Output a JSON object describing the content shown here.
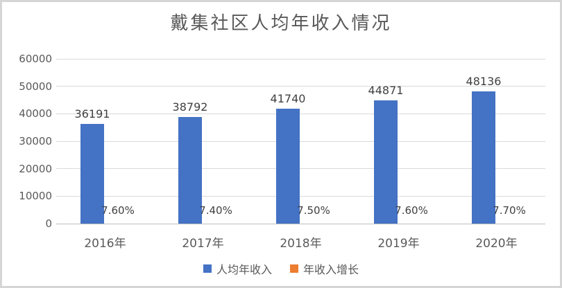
{
  "chart_data": {
    "type": "bar",
    "title": "戴集社区人均年收入情况",
    "categories": [
      "2016年",
      "2017年",
      "2018年",
      "2019年",
      "2020年"
    ],
    "series": [
      {
        "name": "人均年收入",
        "color": "#4472C4",
        "values": [
          36191,
          38792,
          41740,
          44871,
          48136
        ],
        "labels": [
          "36191",
          "38792",
          "41740",
          "44871",
          "48136"
        ]
      },
      {
        "name": "年收入增长",
        "color": "#ED7D31",
        "values": [
          0.076,
          0.074,
          0.075,
          0.076,
          0.077
        ],
        "labels": [
          "7.60%",
          "7.40%",
          "7.50%",
          "7.60%",
          "7.70%"
        ]
      }
    ],
    "ylim": [
      0,
      60000
    ],
    "ytick_step": 10000,
    "yticks": [
      "0",
      "10000",
      "20000",
      "30000",
      "40000",
      "50000",
      "60000"
    ],
    "grid": true,
    "legend_position": "bottom",
    "colors": {
      "gridline": "#d9d9d9",
      "axis_line": "#bfbfbf",
      "axis_text": "#595959",
      "label_text": "#404040",
      "title_text": "#595959",
      "frame_border": "#d5d5d5",
      "background": "#ffffff"
    }
  }
}
